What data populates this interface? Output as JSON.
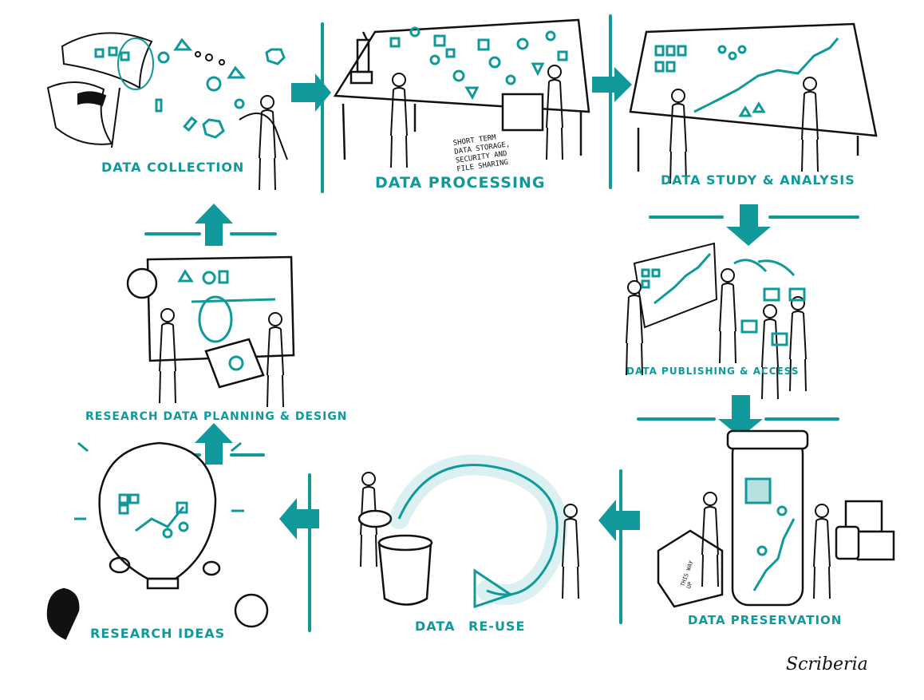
{
  "accent_color": "#10999a",
  "ink_color": "#111111",
  "stages": {
    "data_collection": "DATA COLLECTION",
    "data_processing": "DATA PROCESSING",
    "data_study_analysis": "DATA STUDY & ANALYSIS",
    "data_publishing_access": "DATA PUBLISHING & ACCESS",
    "data_preservation": "DATA PRESERVATION",
    "data_reuse": "DATA RE-USE",
    "research_ideas": "RESEARCH IDEAS",
    "research_planning_design": "RESEARCH DATA PLANNING & DESIGN"
  },
  "notes": {
    "storage_note": "SHORT TERM\nDATA STORAGE,\nSECURITY AND\nFILE SHARING",
    "box_label": "THIS WAY\nUP"
  },
  "logo": "Scriberia",
  "icons": [
    "butterfly-net-icon",
    "microscope-icon",
    "box-icon",
    "line-graph-icon",
    "lightbulb-icon",
    "jar-icon",
    "arrow-icon"
  ]
}
